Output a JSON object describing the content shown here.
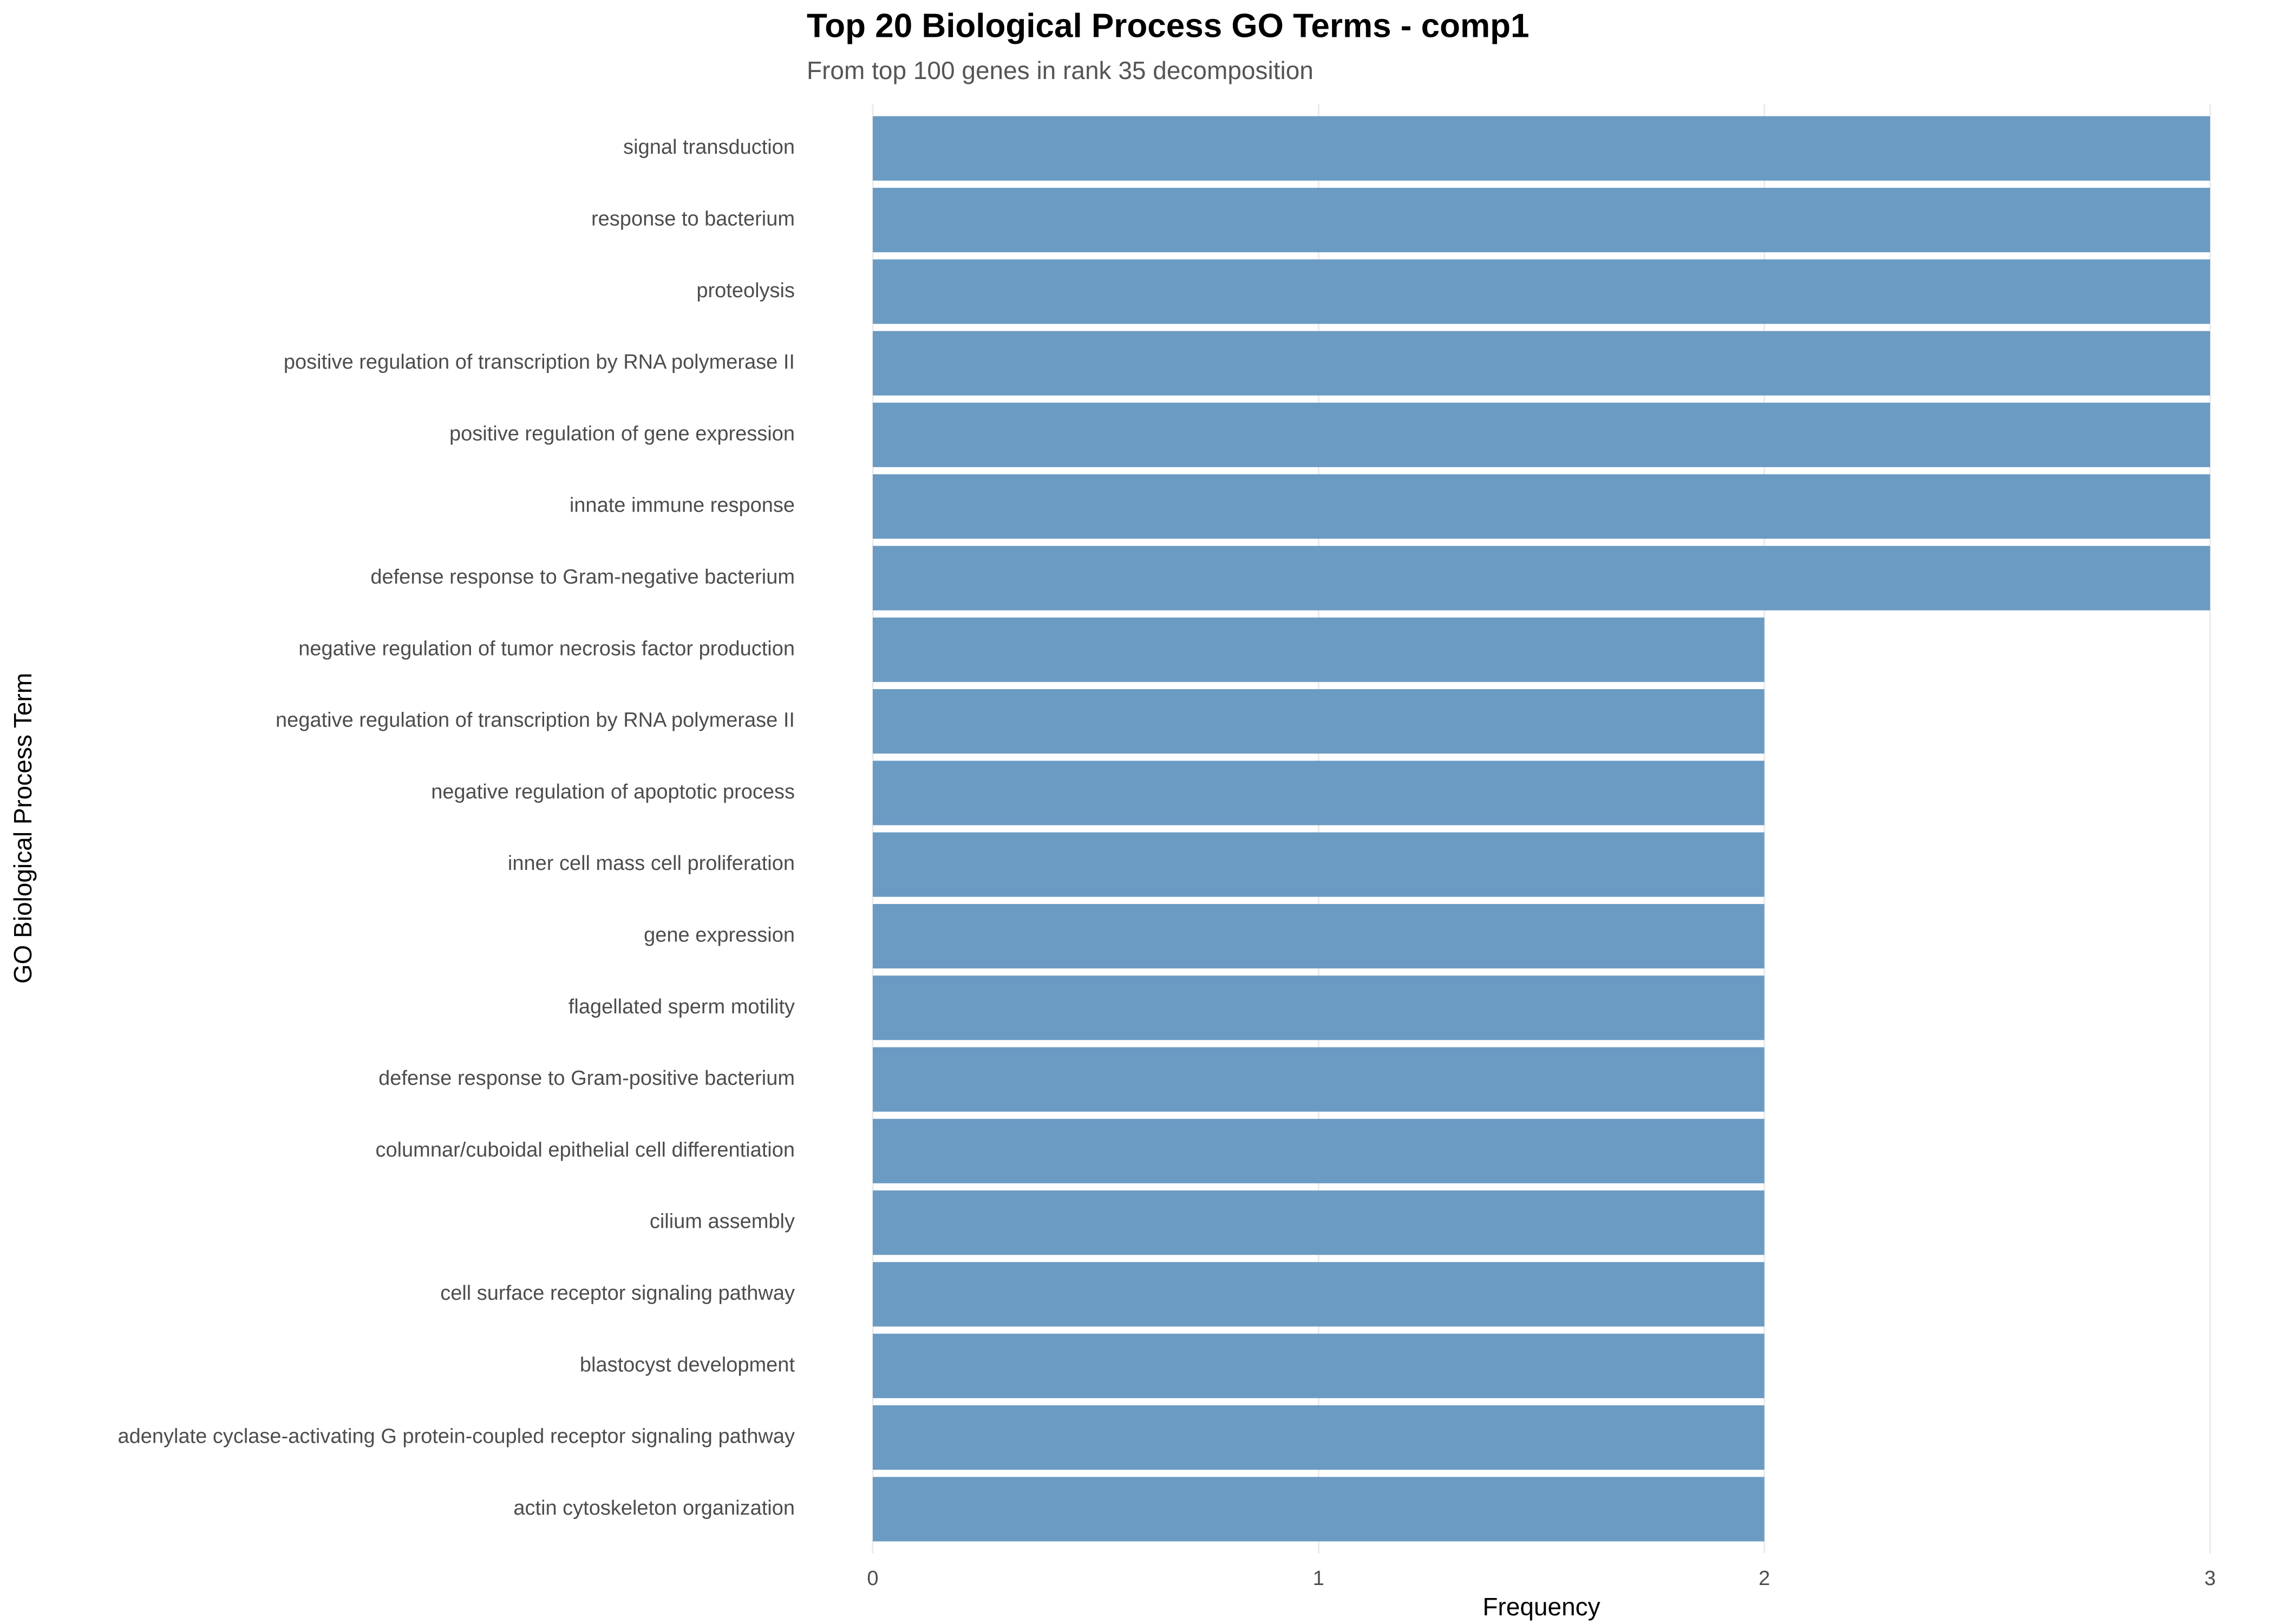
{
  "chart_data": {
    "type": "bar",
    "orientation": "horizontal",
    "title": "Top 20 Biological Process GO Terms - comp1",
    "subtitle": "From top 100 genes in rank 35 decomposition",
    "x_label": "Frequency",
    "y_label": "GO Biological Process Term",
    "categories": [
      "signal transduction",
      "response to bacterium",
      "proteolysis",
      "positive regulation of transcription by RNA polymerase II",
      "positive regulation of gene expression",
      "innate immune response",
      "defense response to Gram-negative bacterium",
      "negative regulation of tumor necrosis factor production",
      "negative regulation of transcription by RNA polymerase II",
      "negative regulation of apoptotic process",
      "inner cell mass cell proliferation",
      "gene expression",
      "flagellated sperm motility",
      "defense response to Gram-positive bacterium",
      "columnar/cuboidal epithelial cell differentiation",
      "cilium assembly",
      "cell surface receptor signaling pathway",
      "blastocyst development",
      "adenylate cyclase-activating G protein-coupled receptor signaling pathway",
      "actin cytoskeleton organization"
    ],
    "values": [
      3,
      3,
      3,
      3,
      3,
      3,
      3,
      2,
      2,
      2,
      2,
      2,
      2,
      2,
      2,
      2,
      2,
      2,
      2,
      2
    ],
    "color": "#6b9bc3",
    "xlim": [
      0,
      3
    ],
    "xticks": [
      0,
      1,
      2,
      3
    ],
    "grid": true
  }
}
